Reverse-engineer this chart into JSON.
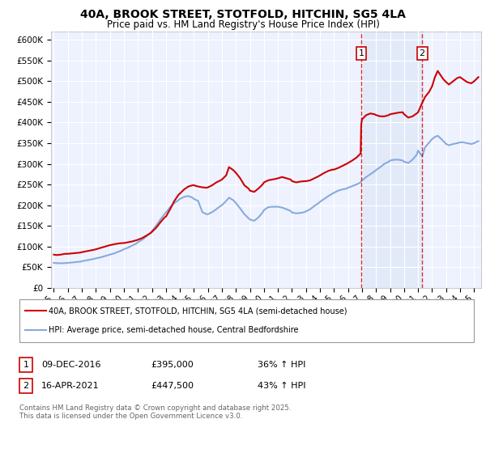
{
  "title": "40A, BROOK STREET, STOTFOLD, HITCHIN, SG5 4LA",
  "subtitle": "Price paid vs. HM Land Registry's House Price Index (HPI)",
  "ylim": [
    0,
    620000
  ],
  "yticks": [
    0,
    50000,
    100000,
    150000,
    200000,
    250000,
    300000,
    350000,
    400000,
    450000,
    500000,
    550000,
    600000
  ],
  "xlim_start": 1994.8,
  "xlim_end": 2025.5,
  "legend_line1": "40A, BROOK STREET, STOTFOLD, HITCHIN, SG5 4LA (semi-detached house)",
  "legend_line2": "HPI: Average price, semi-detached house, Central Bedfordshire",
  "sale1_date": "09-DEC-2016",
  "sale1_price": "£395,000",
  "sale1_hpi": "36% ↑ HPI",
  "sale1_x": 2016.94,
  "sale2_date": "16-APR-2021",
  "sale2_price": "£447,500",
  "sale2_hpi": "43% ↑ HPI",
  "sale2_x": 2021.29,
  "footer": "Contains HM Land Registry data © Crown copyright and database right 2025.\nThis data is licensed under the Open Government Licence v3.0.",
  "property_color": "#cc0000",
  "hpi_color": "#88aadd",
  "sale_line_color": "#cc0000",
  "background_color": "#eef2ff",
  "sale_bg_color": "#dde8f8",
  "property_data": [
    [
      1995.0,
      80000
    ],
    [
      1995.2,
      79000
    ],
    [
      1995.5,
      80000
    ],
    [
      1995.8,
      82000
    ],
    [
      1996.0,
      82000
    ],
    [
      1996.3,
      83000
    ],
    [
      1996.6,
      84000
    ],
    [
      1996.9,
      85000
    ],
    [
      1997.0,
      86000
    ],
    [
      1997.3,
      88000
    ],
    [
      1997.6,
      90000
    ],
    [
      1997.9,
      92000
    ],
    [
      1998.0,
      93000
    ],
    [
      1998.3,
      96000
    ],
    [
      1998.6,
      99000
    ],
    [
      1998.9,
      102000
    ],
    [
      1999.0,
      103000
    ],
    [
      1999.3,
      105000
    ],
    [
      1999.6,
      107000
    ],
    [
      1999.9,
      108000
    ],
    [
      2000.0,
      108000
    ],
    [
      2000.3,
      110000
    ],
    [
      2000.6,
      112000
    ],
    [
      2000.9,
      115000
    ],
    [
      2001.0,
      116000
    ],
    [
      2001.3,
      120000
    ],
    [
      2001.6,
      126000
    ],
    [
      2001.9,
      132000
    ],
    [
      2002.0,
      135000
    ],
    [
      2002.3,
      145000
    ],
    [
      2002.6,
      158000
    ],
    [
      2002.9,
      170000
    ],
    [
      2003.0,
      172000
    ],
    [
      2003.3,
      190000
    ],
    [
      2003.6,
      210000
    ],
    [
      2003.9,
      225000
    ],
    [
      2004.0,
      228000
    ],
    [
      2004.3,
      238000
    ],
    [
      2004.6,
      245000
    ],
    [
      2004.9,
      248000
    ],
    [
      2005.0,
      248000
    ],
    [
      2005.3,
      245000
    ],
    [
      2005.6,
      243000
    ],
    [
      2005.9,
      242000
    ],
    [
      2006.0,
      243000
    ],
    [
      2006.3,
      248000
    ],
    [
      2006.6,
      255000
    ],
    [
      2006.9,
      260000
    ],
    [
      2007.0,
      262000
    ],
    [
      2007.3,
      272000
    ],
    [
      2007.5,
      292000
    ],
    [
      2007.8,
      285000
    ],
    [
      2008.0,
      278000
    ],
    [
      2008.3,
      265000
    ],
    [
      2008.6,
      248000
    ],
    [
      2008.9,
      240000
    ],
    [
      2009.0,
      235000
    ],
    [
      2009.3,
      232000
    ],
    [
      2009.6,
      240000
    ],
    [
      2009.9,
      250000
    ],
    [
      2010.0,
      255000
    ],
    [
      2010.3,
      260000
    ],
    [
      2010.6,
      262000
    ],
    [
      2010.9,
      264000
    ],
    [
      2011.0,
      265000
    ],
    [
      2011.3,
      268000
    ],
    [
      2011.6,
      265000
    ],
    [
      2011.9,
      262000
    ],
    [
      2012.0,
      258000
    ],
    [
      2012.3,
      255000
    ],
    [
      2012.6,
      257000
    ],
    [
      2012.9,
      258000
    ],
    [
      2013.0,
      258000
    ],
    [
      2013.3,
      260000
    ],
    [
      2013.6,
      265000
    ],
    [
      2013.9,
      270000
    ],
    [
      2014.0,
      272000
    ],
    [
      2014.3,
      278000
    ],
    [
      2014.6,
      283000
    ],
    [
      2014.9,
      286000
    ],
    [
      2015.0,
      286000
    ],
    [
      2015.3,
      290000
    ],
    [
      2015.6,
      295000
    ],
    [
      2015.9,
      300000
    ],
    [
      2016.0,
      302000
    ],
    [
      2016.3,
      308000
    ],
    [
      2016.6,
      315000
    ],
    [
      2016.9,
      325000
    ],
    [
      2016.94,
      395000
    ],
    [
      2017.0,
      408000
    ],
    [
      2017.3,
      418000
    ],
    [
      2017.6,
      422000
    ],
    [
      2017.9,
      420000
    ],
    [
      2018.0,
      418000
    ],
    [
      2018.3,
      415000
    ],
    [
      2018.6,
      415000
    ],
    [
      2018.9,
      418000
    ],
    [
      2019.0,
      420000
    ],
    [
      2019.3,
      422000
    ],
    [
      2019.6,
      424000
    ],
    [
      2019.9,
      425000
    ],
    [
      2020.0,
      420000
    ],
    [
      2020.3,
      412000
    ],
    [
      2020.6,
      415000
    ],
    [
      2020.9,
      422000
    ],
    [
      2021.0,
      425000
    ],
    [
      2021.29,
      447500
    ],
    [
      2021.5,
      462000
    ],
    [
      2021.8,
      475000
    ],
    [
      2022.0,
      488000
    ],
    [
      2022.2,
      510000
    ],
    [
      2022.4,
      525000
    ],
    [
      2022.6,
      515000
    ],
    [
      2022.8,
      505000
    ],
    [
      2023.0,
      498000
    ],
    [
      2023.2,
      492000
    ],
    [
      2023.5,
      500000
    ],
    [
      2023.8,
      508000
    ],
    [
      2024.0,
      510000
    ],
    [
      2024.2,
      505000
    ],
    [
      2024.5,
      498000
    ],
    [
      2024.8,
      495000
    ],
    [
      2025.0,
      500000
    ],
    [
      2025.3,
      510000
    ]
  ],
  "hpi_data": [
    [
      1995.0,
      60000
    ],
    [
      1995.2,
      59500
    ],
    [
      1995.5,
      59000
    ],
    [
      1995.8,
      59500
    ],
    [
      1996.0,
      60000
    ],
    [
      1996.3,
      61000
    ],
    [
      1996.6,
      62000
    ],
    [
      1996.9,
      63000
    ],
    [
      1997.0,
      64000
    ],
    [
      1997.3,
      66000
    ],
    [
      1997.6,
      68000
    ],
    [
      1997.9,
      70000
    ],
    [
      1998.0,
      71000
    ],
    [
      1998.3,
      73000
    ],
    [
      1998.6,
      76000
    ],
    [
      1998.9,
      79000
    ],
    [
      1999.0,
      80000
    ],
    [
      1999.3,
      83000
    ],
    [
      1999.6,
      87000
    ],
    [
      1999.9,
      91000
    ],
    [
      2000.0,
      93000
    ],
    [
      2000.3,
      97000
    ],
    [
      2000.6,
      102000
    ],
    [
      2000.9,
      107000
    ],
    [
      2001.0,
      110000
    ],
    [
      2001.3,
      116000
    ],
    [
      2001.6,
      124000
    ],
    [
      2001.9,
      133000
    ],
    [
      2002.0,
      137000
    ],
    [
      2002.3,
      150000
    ],
    [
      2002.6,
      165000
    ],
    [
      2002.9,
      178000
    ],
    [
      2003.0,
      182000
    ],
    [
      2003.3,
      195000
    ],
    [
      2003.6,
      205000
    ],
    [
      2003.9,
      212000
    ],
    [
      2004.0,
      215000
    ],
    [
      2004.3,
      220000
    ],
    [
      2004.6,
      222000
    ],
    [
      2004.9,
      218000
    ],
    [
      2005.0,
      215000
    ],
    [
      2005.3,
      210000
    ],
    [
      2005.6,
      183000
    ],
    [
      2005.9,
      178000
    ],
    [
      2006.0,
      178000
    ],
    [
      2006.3,
      183000
    ],
    [
      2006.6,
      190000
    ],
    [
      2006.9,
      198000
    ],
    [
      2007.0,
      200000
    ],
    [
      2007.3,
      210000
    ],
    [
      2007.5,
      218000
    ],
    [
      2007.8,
      212000
    ],
    [
      2008.0,
      205000
    ],
    [
      2008.3,
      192000
    ],
    [
      2008.6,
      178000
    ],
    [
      2008.9,
      168000
    ],
    [
      2009.0,
      165000
    ],
    [
      2009.3,
      162000
    ],
    [
      2009.6,
      170000
    ],
    [
      2009.9,
      182000
    ],
    [
      2010.0,
      188000
    ],
    [
      2010.3,
      195000
    ],
    [
      2010.6,
      196000
    ],
    [
      2010.9,
      196000
    ],
    [
      2011.0,
      196000
    ],
    [
      2011.3,
      194000
    ],
    [
      2011.6,
      190000
    ],
    [
      2011.9,
      186000
    ],
    [
      2012.0,
      182000
    ],
    [
      2012.3,
      180000
    ],
    [
      2012.6,
      181000
    ],
    [
      2012.9,
      183000
    ],
    [
      2013.0,
      185000
    ],
    [
      2013.3,
      190000
    ],
    [
      2013.6,
      198000
    ],
    [
      2013.9,
      205000
    ],
    [
      2014.0,
      208000
    ],
    [
      2014.3,
      215000
    ],
    [
      2014.6,
      222000
    ],
    [
      2014.9,
      228000
    ],
    [
      2015.0,
      230000
    ],
    [
      2015.3,
      235000
    ],
    [
      2015.6,
      238000
    ],
    [
      2015.9,
      240000
    ],
    [
      2016.0,
      242000
    ],
    [
      2016.3,
      246000
    ],
    [
      2016.6,
      250000
    ],
    [
      2016.9,
      255000
    ],
    [
      2017.0,
      260000
    ],
    [
      2017.3,
      268000
    ],
    [
      2017.6,
      275000
    ],
    [
      2017.9,
      282000
    ],
    [
      2018.0,
      285000
    ],
    [
      2018.3,
      292000
    ],
    [
      2018.6,
      300000
    ],
    [
      2018.9,
      305000
    ],
    [
      2019.0,
      308000
    ],
    [
      2019.3,
      310000
    ],
    [
      2019.6,
      310000
    ],
    [
      2019.9,
      308000
    ],
    [
      2020.0,
      305000
    ],
    [
      2020.3,
      302000
    ],
    [
      2020.6,
      310000
    ],
    [
      2020.9,
      322000
    ],
    [
      2021.0,
      332000
    ],
    [
      2021.29,
      318000
    ],
    [
      2021.5,
      340000
    ],
    [
      2021.8,
      352000
    ],
    [
      2022.0,
      360000
    ],
    [
      2022.2,
      365000
    ],
    [
      2022.4,
      368000
    ],
    [
      2022.6,
      362000
    ],
    [
      2022.8,
      355000
    ],
    [
      2023.0,
      348000
    ],
    [
      2023.2,
      345000
    ],
    [
      2023.5,
      348000
    ],
    [
      2023.8,
      350000
    ],
    [
      2024.0,
      352000
    ],
    [
      2024.2,
      352000
    ],
    [
      2024.5,
      350000
    ],
    [
      2024.8,
      348000
    ],
    [
      2025.0,
      350000
    ],
    [
      2025.3,
      355000
    ]
  ]
}
